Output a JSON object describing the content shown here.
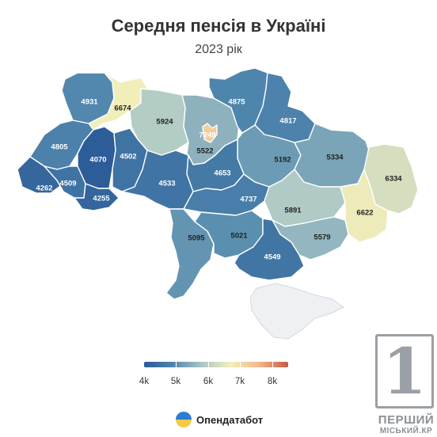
{
  "title": "Середня пенсія в Україні",
  "subtitle": "2023 рік",
  "legend": {
    "min": 4000,
    "max": 8500,
    "colors": [
      "#2a5a96",
      "#4f86ad",
      "#a9c6c6",
      "#f3efb9",
      "#efb886",
      "#c45a47"
    ],
    "ticks": [
      {
        "label": "4k",
        "value": 4000
      },
      {
        "label": "5k",
        "value": 5000
      },
      {
        "label": "6k",
        "value": 6000
      },
      {
        "label": "7k",
        "value": 7000
      },
      {
        "label": "8k",
        "value": 8000
      }
    ]
  },
  "regions": [
    {
      "id": "volyn",
      "value": "4931"
    },
    {
      "id": "rivne",
      "value": "6674"
    },
    {
      "id": "zhytomyr",
      "value": "5924"
    },
    {
      "id": "kyiv-oblast",
      "value": "5522"
    },
    {
      "id": "kyiv-city",
      "value": "7249"
    },
    {
      "id": "chernihiv",
      "value": "4875"
    },
    {
      "id": "sumy",
      "value": "4817"
    },
    {
      "id": "lviv",
      "value": "4805"
    },
    {
      "id": "ternopil",
      "value": "4070"
    },
    {
      "id": "khmelnytskyi",
      "value": "4502"
    },
    {
      "id": "poltava",
      "value": "5192"
    },
    {
      "id": "kharkiv",
      "value": "5334"
    },
    {
      "id": "luhansk",
      "value": "6334"
    },
    {
      "id": "zakarpattia",
      "value": "4262"
    },
    {
      "id": "ivano-frankivsk",
      "value": "4509"
    },
    {
      "id": "chernivtsi",
      "value": "4255"
    },
    {
      "id": "vinnytsia",
      "value": "4533"
    },
    {
      "id": "cherkasy",
      "value": "4653"
    },
    {
      "id": "kirovohrad",
      "value": "4737"
    },
    {
      "id": "dnipropetrovsk",
      "value": "5891"
    },
    {
      "id": "donetsk",
      "value": "6622"
    },
    {
      "id": "odesa",
      "value": "5095"
    },
    {
      "id": "mykolaiv",
      "value": "5021"
    },
    {
      "id": "zaporizhzhia",
      "value": "5579"
    },
    {
      "id": "kherson",
      "value": "4549"
    },
    {
      "id": "crimea",
      "value": ""
    }
  ],
  "brand": {
    "name": "Опендатабот",
    "logo_icon": "opendatabot-logo-icon"
  },
  "watermark": {
    "digit": "1",
    "line1": "ПЕРШИЙ",
    "line2": "МІСЬКИЙ.КР"
  }
}
